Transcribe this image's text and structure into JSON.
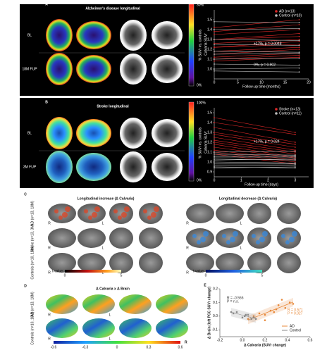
{
  "panel_a": {
    "letter": "A",
    "title": "Alzheimer's disease longitudinal",
    "rows": [
      "BL",
      "18M FUP"
    ],
    "colorbar": {
      "max": "30%",
      "min": "0%",
      "label": "% SUVr vs. controls"
    },
    "chart": {
      "type": "line",
      "xlabel": "Follow-up time (months)",
      "ylabel": "Calvaria SUVr",
      "x": [
        0,
        18
      ],
      "xlim": [
        0,
        20
      ],
      "xticks": [
        0,
        5,
        10,
        15,
        20
      ],
      "ylim": [
        0.9,
        1.6
      ],
      "yticks": [
        {
          "value": 1,
          "label": "1.0"
        },
        1.1,
        1.2,
        1.3,
        1.4,
        1.5
      ],
      "annotations": [
        "+17%, p = 0.0048",
        "0%, p = 0.902"
      ],
      "series": [
        {
          "name": "AD (n=13)",
          "color": "#e02828",
          "start": [
            1.42,
            1.38,
            1.3,
            1.26,
            1.22,
            1.18,
            1.15,
            1.12,
            1.1,
            1.08,
            1.22,
            1.3,
            1.35
          ],
          "end": [
            1.5,
            1.45,
            1.36,
            1.3,
            1.28,
            1.22,
            1.2,
            1.16,
            1.14,
            1.12,
            1.25,
            1.33,
            1.4
          ]
        },
        {
          "name": "Control (n=10)",
          "color": "#bdbdbd",
          "start": [
            1.48,
            1.4,
            1.25,
            1.18,
            1.1,
            1.05,
            1.0,
            0.98,
            1.15,
            1.3
          ],
          "end": [
            1.47,
            1.41,
            1.24,
            1.17,
            1.11,
            1.04,
            1.01,
            0.97,
            1.16,
            1.29
          ]
        }
      ]
    }
  },
  "panel_b": {
    "letter": "B",
    "title": "Stroke longitudinal",
    "rows": [
      "BL",
      "3M FUP"
    ],
    "colorbar": {
      "max": "100%",
      "min": "0%",
      "label": "% SUVr vs. controls"
    },
    "chart": {
      "type": "line",
      "xlabel": "Follow-up time (days)",
      "ylabel": "Calvaria SUVr",
      "x": [
        0,
        3
      ],
      "xlim": [
        0,
        3.5
      ],
      "xticks": [
        0,
        1,
        2,
        3
      ],
      "ylim": [
        0.85,
        1.55
      ],
      "yticks": [
        0.9,
        {
          "value": 1,
          "label": "1.0"
        },
        1.1,
        1.2,
        1.3,
        1.4,
        1.5
      ],
      "annotations": [
        "+17%, p = 0.024"
      ],
      "series": [
        {
          "name": "Stroke (n=13)",
          "color": "#e02828",
          "start": [
            1.45,
            1.4,
            1.35,
            1.3,
            1.28,
            1.25,
            1.22,
            1.2,
            1.18,
            1.15,
            1.12,
            1.1,
            1.08
          ],
          "end": [
            1.3,
            1.28,
            1.2,
            1.18,
            1.15,
            1.12,
            1.1,
            1.08,
            1.05,
            1.04,
            1.02,
            1.0,
            0.98
          ]
        },
        {
          "name": "Control (n=11)",
          "color": "#bdbdbd",
          "start": [
            1.1,
            1.08,
            1.05,
            1.02,
            1.0,
            0.98,
            0.96,
            0.95,
            0.94,
            1.03,
            1.06
          ],
          "end": [
            1.11,
            1.07,
            1.05,
            1.03,
            0.99,
            0.98,
            0.97,
            0.94,
            0.95,
            1.02,
            1.06
          ]
        }
      ]
    }
  },
  "panel_c": {
    "letter": "C",
    "titles": [
      "Longitudinal increase (Δ Calvaria)",
      "Longitudinal decrease (Δ Calvaria)"
    ],
    "rows": [
      "AD (n=13, 18M)",
      "Stroke (n=13, 3M)",
      "Controls (n=10, 18M)"
    ],
    "hemispheres": [
      "R",
      "L"
    ],
    "colorbar_label": "t-value",
    "colorbar_ticks": [
      "0",
      "5"
    ]
  },
  "panel_d": {
    "letter": "D",
    "title": "Δ Calvaria x Δ Brain",
    "rows": [
      "AD (n=13, 18M)",
      "Controls (n=10, 18M)"
    ],
    "hemispheres": [
      "R",
      "L"
    ],
    "colorbar_ticks": [
      "-0.6",
      "-0.3",
      "0",
      "0.3",
      "0.6"
    ],
    "colorbar_label": "R"
  },
  "panel_e": {
    "letter": "E",
    "chart": {
      "type": "scatter",
      "xlabel": "Δ Calvaria (SUVr change)",
      "ylabel": "Δ Brain (left PCC SUVr change)",
      "xlim": [
        -0.2,
        0.6
      ],
      "xticks": [
        -0.2,
        {
          "value": 0,
          "label": "0.0"
        },
        0.2,
        0.4,
        0.6
      ],
      "ylim": [
        -0.15,
        0.2
      ],
      "yticks": [
        -0.1,
        {
          "value": 0,
          "label": "0.0"
        },
        0.1,
        0.2
      ],
      "annotations": [
        "R = -0.566",
        "P = n.s.",
        "R = 0.571",
        "P = 0.027"
      ],
      "series": [
        {
          "name": "AD",
          "color": "#e8893a",
          "x": [
            0.05,
            0.1,
            0.15,
            0.2,
            0.25,
            0.3,
            0.32,
            0.38,
            0.42,
            0.45,
            0.2,
            0.28,
            0.35
          ],
          "y": [
            -0.02,
            0.0,
            0.02,
            0.01,
            0.04,
            0.05,
            0.08,
            0.06,
            0.1,
            0.09,
            -0.03,
            0.03,
            0.12
          ]
        },
        {
          "name": "Control",
          "color": "#8a8a8a",
          "x": [
            -0.1,
            -0.05,
            0.0,
            0.02,
            0.05,
            0.08,
            0.1,
            -0.08,
            0.12,
            0.03
          ],
          "y": [
            0.03,
            0.03,
            -0.01,
            0.0,
            0.01,
            -0.02,
            -0.01,
            0.02,
            -0.02,
            0.01
          ]
        }
      ]
    }
  }
}
